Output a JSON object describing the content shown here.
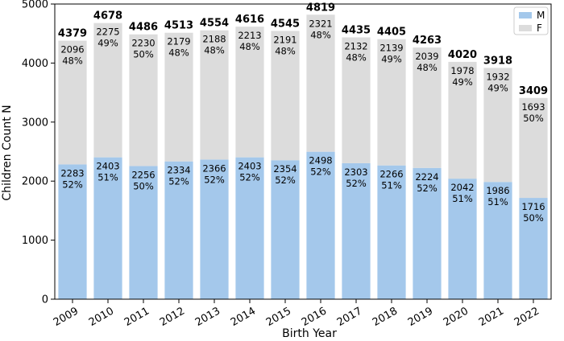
{
  "chart_data": {
    "type": "bar",
    "stacked": true,
    "xlabel": "Birth Year",
    "ylabel": "Children Count N",
    "ylim": [
      0,
      5000
    ],
    "yticks": [
      0,
      1000,
      2000,
      3000,
      4000,
      5000
    ],
    "categories": [
      "2009",
      "2010",
      "2011",
      "2012",
      "2013",
      "2014",
      "2015",
      "2016",
      "2017",
      "2018",
      "2019",
      "2020",
      "2021",
      "2022"
    ],
    "totals": [
      4379,
      4678,
      4486,
      4513,
      4554,
      4616,
      4545,
      4819,
      4435,
      4405,
      4263,
      4020,
      3918,
      3409
    ],
    "series": [
      {
        "name": "M",
        "color": "#a4c8eb",
        "values": [
          2283,
          2403,
          2256,
          2334,
          2366,
          2403,
          2354,
          2498,
          2303,
          2266,
          2224,
          2042,
          1986,
          1716
        ],
        "percents": [
          "52%",
          "51%",
          "50%",
          "52%",
          "52%",
          "52%",
          "52%",
          "52%",
          "52%",
          "51%",
          "52%",
          "51%",
          "51%",
          "50%"
        ]
      },
      {
        "name": "F",
        "color": "#dcdcdc",
        "values": [
          2096,
          2275,
          2230,
          2179,
          2188,
          2213,
          2191,
          2321,
          2132,
          2139,
          2039,
          1978,
          1932,
          1693
        ],
        "percents": [
          "48%",
          "49%",
          "50%",
          "48%",
          "48%",
          "48%",
          "48%",
          "48%",
          "48%",
          "49%",
          "48%",
          "49%",
          "49%",
          "50%"
        ]
      }
    ],
    "legend": {
      "position": "top-right",
      "entries": [
        "M",
        "F"
      ]
    }
  }
}
